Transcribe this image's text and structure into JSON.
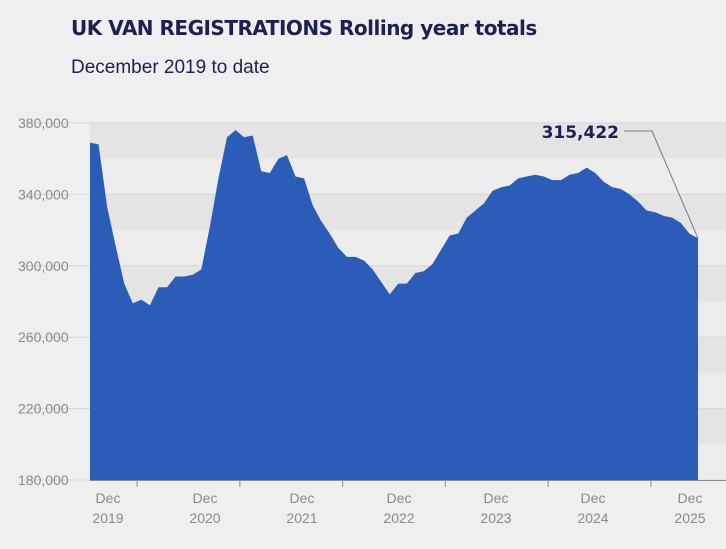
{
  "chart_data": {
    "type": "area",
    "title": "UK VAN REGISTRATIONS Rolling year totals",
    "subtitle": "December 2019 to date",
    "ylim": [
      180000,
      380000
    ],
    "yticks": [
      {
        "value": 380000,
        "label": "380,000"
      },
      {
        "value": 340000,
        "label": "340,000"
      },
      {
        "value": 300000,
        "label": "300,000"
      },
      {
        "value": 260000,
        "label": "260,000"
      },
      {
        "value": 220000,
        "label": "220,000"
      },
      {
        "value": 180000,
        "label": "180,000"
      }
    ],
    "xticks": [
      {
        "index": 0,
        "month": "Dec",
        "year": "2019"
      },
      {
        "index": 12,
        "month": "Dec",
        "year": "2020"
      },
      {
        "index": 24,
        "month": "Dec",
        "year": "2021"
      },
      {
        "index": 36,
        "month": "Dec",
        "year": "2022"
      },
      {
        "index": 48,
        "month": "Dec",
        "year": "2023"
      },
      {
        "index": 60,
        "month": "Dec",
        "year": "2024"
      },
      {
        "index": 72,
        "month": "Dec",
        "year": "2025"
      }
    ],
    "series": [
      {
        "color": "#2b5cb8",
        "values": [
          369000,
          368000,
          333000,
          311000,
          290000,
          279000,
          281000,
          278000,
          288000,
          288000,
          294000,
          294000,
          295000,
          298000,
          322000,
          349000,
          372000,
          376000,
          372000,
          373000,
          353000,
          352000,
          360000,
          362000,
          350000,
          349000,
          334000,
          325000,
          318000,
          310000,
          305000,
          305000,
          303000,
          298000,
          291000,
          284000,
          290000,
          290000,
          296000,
          297000,
          301000,
          309000,
          317000,
          318000,
          327000,
          331000,
          335000,
          342000,
          344000,
          345000,
          349000,
          350000,
          351000,
          350000,
          348000,
          348000,
          351000,
          352000,
          355000,
          352000,
          347000,
          344000,
          343000,
          340000,
          336000,
          331000,
          330000,
          328000,
          327000,
          324000,
          318000,
          315422
        ]
      }
    ],
    "annotation": {
      "label": "315,422"
    },
    "grid": "horizontal bands"
  }
}
